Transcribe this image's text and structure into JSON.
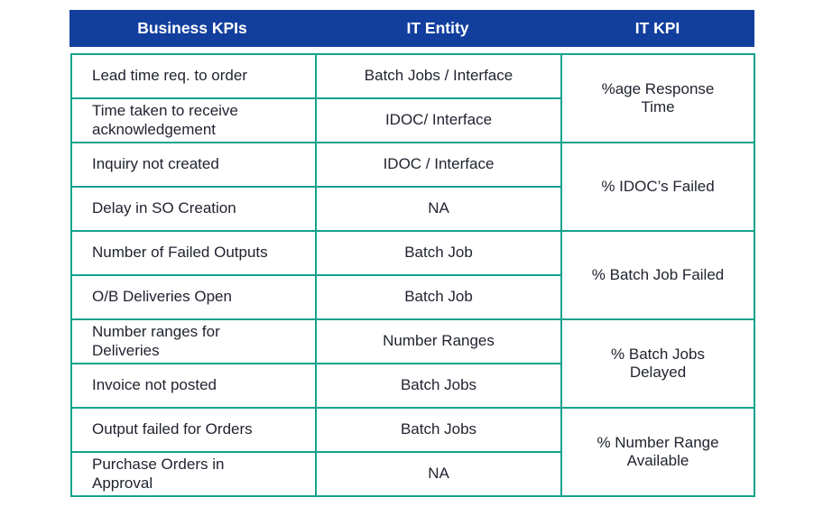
{
  "table": {
    "headers": [
      {
        "label": "Business KPIs"
      },
      {
        "label": "IT Entity"
      },
      {
        "label": "IT KPI"
      }
    ],
    "rows": [
      {
        "business_kpi": "Lead time req. to order",
        "it_entity": "Batch Jobs / Interface"
      },
      {
        "business_kpi": "Time taken to receive\nacknowledgement",
        "it_entity": "IDOC/ Interface"
      },
      {
        "business_kpi": "Inquiry not created",
        "it_entity": "IDOC / Interface"
      },
      {
        "business_kpi": "Delay in SO Creation",
        "it_entity": "NA"
      },
      {
        "business_kpi": "Number of Failed Outputs",
        "it_entity": "Batch Job"
      },
      {
        "business_kpi": "O/B Deliveries Open",
        "it_entity": "Batch Job"
      },
      {
        "business_kpi": "Number ranges for\nDeliveries",
        "it_entity": "Number Ranges"
      },
      {
        "business_kpi": "Invoice not posted",
        "it_entity": "Batch Jobs"
      },
      {
        "business_kpi": "Output failed for Orders",
        "it_entity": "Batch Jobs"
      },
      {
        "business_kpi": "Purchase Orders in\nApproval",
        "it_entity": "NA"
      }
    ],
    "it_kpis": [
      {
        "label": "%age Response\nTime"
      },
      {
        "label": "% IDOC’s Failed"
      },
      {
        "label": "% Batch Job Failed"
      },
      {
        "label": "% Batch Jobs\nDelayed"
      },
      {
        "label": "% Number Range\nAvailable"
      }
    ],
    "colors": {
      "header_bg": "#123f9e",
      "header_text": "#ffffff",
      "border": "#14a38c",
      "body_text": "#212430",
      "background": "#ffffff"
    }
  }
}
